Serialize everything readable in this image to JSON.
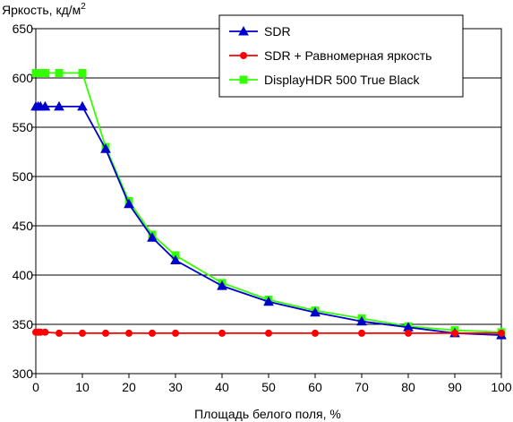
{
  "chart_data": {
    "type": "line",
    "title": "",
    "ylabel_text": "Яркость, кд/м",
    "ylabel_sup": "2",
    "xlabel": "Площадь белого поля, %",
    "xlim": [
      0,
      100
    ],
    "ylim": [
      300,
      650
    ],
    "xticks": [
      0,
      10,
      20,
      30,
      40,
      50,
      60,
      70,
      80,
      90,
      100
    ],
    "yticks": [
      300,
      350,
      400,
      450,
      500,
      550,
      600,
      650
    ],
    "grid": "horizontal",
    "legend_position": "top-right",
    "series": [
      {
        "name": "SDR",
        "color": "#0000cc",
        "marker": "triangle",
        "x": [
          0,
          0.5,
          1,
          2,
          5,
          10,
          15,
          20,
          25,
          30,
          40,
          50,
          60,
          70,
          80,
          90,
          100
        ],
        "y": [
          571,
          571,
          571,
          571,
          571,
          571,
          528,
          472,
          438,
          415,
          389,
          373,
          362,
          353,
          347,
          341,
          339
        ]
      },
      {
        "name": "SDR + Равномерная яркость",
        "color": "#ff0000",
        "marker": "circle",
        "x": [
          0,
          0.5,
          1,
          2,
          5,
          10,
          15,
          20,
          25,
          30,
          40,
          50,
          60,
          70,
          80,
          90,
          100
        ],
        "y": [
          342,
          342,
          342,
          342,
          341,
          341,
          341,
          341,
          341,
          341,
          341,
          341,
          341,
          341,
          341,
          341,
          341
        ]
      },
      {
        "name": "DisplayHDR 500 True Black",
        "color": "#33ff00",
        "marker": "square",
        "x": [
          0,
          0.5,
          1,
          2,
          5,
          10,
          15,
          20,
          25,
          30,
          40,
          50,
          60,
          70,
          80,
          90,
          100
        ],
        "y": [
          605,
          605,
          605,
          605,
          605,
          605,
          530,
          475,
          441,
          420,
          392,
          375,
          364,
          356,
          348,
          344,
          342
        ]
      }
    ]
  }
}
